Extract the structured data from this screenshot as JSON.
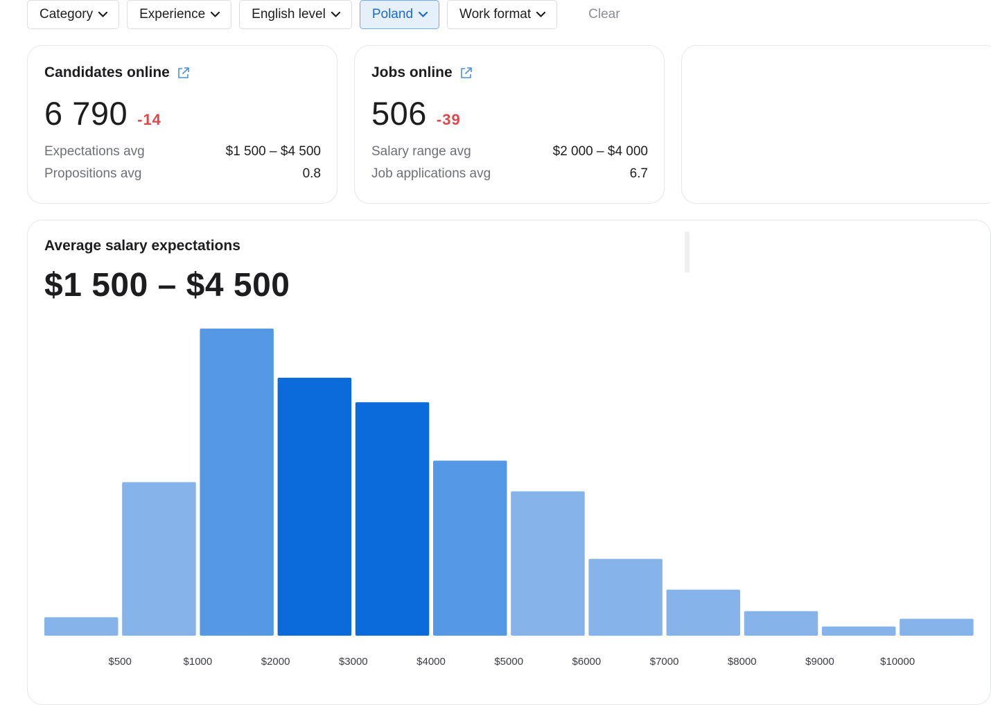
{
  "filters": [
    {
      "label": "Category",
      "active": false
    },
    {
      "label": "Experience",
      "active": false
    },
    {
      "label": "English level",
      "active": false
    },
    {
      "label": "Poland",
      "active": true
    },
    {
      "label": "Work format",
      "active": false
    }
  ],
  "clear_label": "Clear",
  "candidates": {
    "title": "Candidates online",
    "value": "6 790",
    "delta": "-14",
    "rows": [
      {
        "label": "Expectations avg",
        "value": "$1 500 – $4 500"
      },
      {
        "label": "Propositions avg",
        "value": "0.8"
      }
    ]
  },
  "jobs": {
    "title": "Jobs online",
    "value": "506",
    "delta": "-39",
    "rows": [
      {
        "label": "Salary range avg",
        "value": "$2 000 – $4 000"
      },
      {
        "label": "Job applications avg",
        "value": "6.7"
      }
    ]
  },
  "salary": {
    "title": "Average salary expectations",
    "range": "$1 500 – $4 500"
  },
  "colors": {
    "accent": "#1b6ad7",
    "delta_negative": "#e0474c",
    "bar_light": "#85b3ea",
    "bar_mid": "#5598e4",
    "bar_dark": "#0b6bdb"
  },
  "chart_data": {
    "type": "bar",
    "tick_labels": [
      "$500",
      "$1000",
      "$2000",
      "$3000",
      "$4000",
      "$5000",
      "$6000",
      "$7000",
      "$8000",
      "$9000",
      "$10000"
    ],
    "values": [
      6,
      50,
      100,
      84,
      76,
      57,
      47,
      25,
      15,
      8,
      3,
      5.5
    ],
    "shade": [
      "light",
      "light",
      "mid",
      "dark",
      "dark",
      "mid",
      "light",
      "light",
      "light",
      "light",
      "light",
      "light"
    ],
    "ylim": [
      0,
      100
    ],
    "grid": false,
    "title": "Average salary expectations"
  }
}
